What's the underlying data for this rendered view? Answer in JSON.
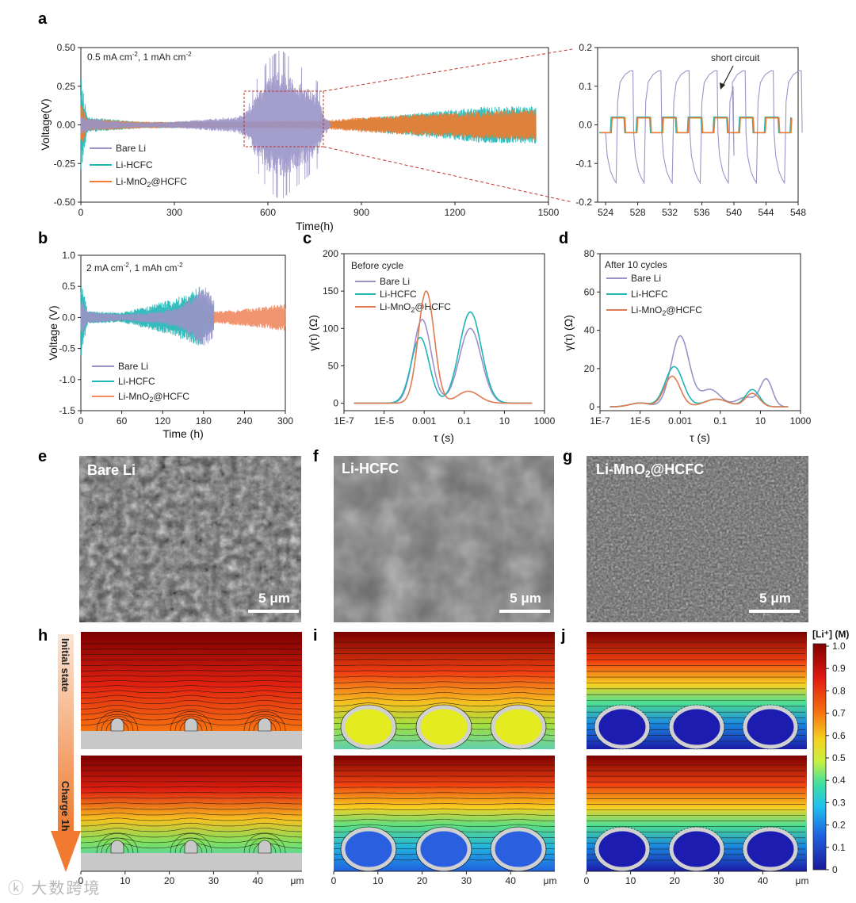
{
  "colors": {
    "bare_li": "#9a93c8",
    "li_hcfc": "#1fb5b5",
    "li_mno2": "#f07a2e",
    "frame": "#222222"
  },
  "panels": {
    "a": {
      "label": "a",
      "condition_base": "0.5 mA cm",
      "condition_sup1": "-2",
      "condition_mid": ", 1 mAh cm",
      "condition_sup2": "-2",
      "xlabel": "Time(h)",
      "ylabel": "Voltage(V)",
      "legend": {
        "bare": "Bare Li",
        "hcfc": "Li-HCFC",
        "mno2_pre": "Li-MnO",
        "mno2_sub": "2",
        "mno2_post": "@HCFC"
      },
      "zoom_note": "short circuit"
    },
    "b": {
      "label": "b",
      "condition_base": "2 mA cm",
      "condition_sup1": "-2",
      "condition_mid": ", 1 mAh cm",
      "condition_sup2": "-2",
      "xlabel": "Time (h)",
      "ylabel": "Voltage (V)",
      "legend": {
        "bare": "Bare Li",
        "hcfc": "Li-HCFC",
        "mno2_pre": "Li-MnO",
        "mno2_sub": "2",
        "mno2_post": "@HCFC"
      }
    },
    "c": {
      "label": "c",
      "note": "Before cycle",
      "xlabel": "τ (s)",
      "ylabel": "γ(τ)   (Ω)",
      "legend": {
        "bare": "Bare Li",
        "hcfc": "Li-HCFC",
        "mno2_pre": "Li-MnO",
        "mno2_sub": "2",
        "mno2_post": "@HCFC"
      }
    },
    "d": {
      "label": "d",
      "note": "After 10 cycles",
      "xlabel": "τ (s)",
      "ylabel": "γ(τ)   (Ω)",
      "legend": {
        "bare": "Bare Li",
        "hcfc": "Li-HCFC",
        "mno2_pre": "Li-MnO",
        "mno2_sub": "2",
        "mno2_post": "@HCFC"
      }
    },
    "e": {
      "label": "e",
      "title": "Bare Li",
      "scale": "5 μm"
    },
    "f": {
      "label": "f",
      "title": "Li-HCFC",
      "scale": "5 μm"
    },
    "g": {
      "label": "g",
      "title_pre": "Li-MnO",
      "title_sub": "2",
      "title_post": "@HCFC",
      "scale": "5 μm"
    },
    "h": {
      "label": "h",
      "arrow_top": "Initial state",
      "arrow_bottom": "Charge 1h"
    },
    "i": {
      "label": "i"
    },
    "j": {
      "label": "j"
    },
    "colorbar": {
      "title": "[Li⁺] (M)",
      "ticks": [
        "1.0",
        "0.9",
        "0.8",
        "0.7",
        "0.6",
        "0.5",
        "0.4",
        "0.3",
        "0.2",
        "0.1",
        "0"
      ]
    },
    "sim_axis": {
      "ticks": [
        "0",
        "10",
        "20",
        "30",
        "40"
      ],
      "unit": "μm"
    }
  },
  "chart_data": [
    {
      "id": "a",
      "type": "line",
      "title": "0.5 mA cm-2, 1 mAh cm-2",
      "xlabel": "Time(h)",
      "ylabel": "Voltage(V)",
      "xlim": [
        0,
        1500
      ],
      "ylim": [
        -0.5,
        0.5
      ],
      "xticks": [
        "0",
        "300",
        "600",
        "900",
        "1200",
        "1500"
      ],
      "yticks": [
        "0.50",
        "0.25",
        "0.00",
        "-0.25",
        "-0.50"
      ],
      "series": [
        {
          "name": "Bare Li",
          "envelope_t": [
            0,
            20,
            100,
            200,
            300,
            400,
            500,
            540,
            560,
            600,
            640,
            680,
            720,
            760,
            780,
            800
          ],
          "envelope_amp": [
            0.06,
            0.04,
            0.025,
            0.015,
            0.02,
            0.035,
            0.05,
            0.1,
            0.2,
            0.3,
            0.35,
            0.3,
            0.25,
            0.2,
            0.05,
            0.02
          ]
        },
        {
          "name": "Li-HCFC",
          "envelope_t": [
            0,
            20,
            200,
            500,
            800,
            900,
            1000,
            1200,
            1300,
            1460
          ],
          "envelope_amp": [
            0.32,
            0.05,
            0.02,
            0.02,
            0.02,
            0.04,
            0.06,
            0.1,
            0.12,
            0.12
          ]
        },
        {
          "name": "Li-MnO2@HCFC",
          "envelope_t": [
            0,
            20,
            200,
            500,
            800,
            900,
            1000,
            1200,
            1400,
            1460
          ],
          "envelope_amp": [
            0.15,
            0.04,
            0.02,
            0.02,
            0.03,
            0.05,
            0.06,
            0.08,
            0.1,
            0.1
          ]
        }
      ]
    },
    {
      "id": "a_zoom",
      "type": "line",
      "xlim": [
        523,
        548
      ],
      "ylim": [
        -0.2,
        0.2
      ],
      "xticks": [
        "524",
        "528",
        "532",
        "536",
        "540",
        "544",
        "548"
      ],
      "yticks": [
        "0.2",
        "0.1",
        "0.0",
        "-0.1",
        "-0.2"
      ],
      "series": [
        {
          "name": "Bare Li",
          "peak_high": 0.14,
          "peak_low": -0.15
        },
        {
          "name": "Li-HCFC",
          "plateau": 0.02
        },
        {
          "name": "Li-MnO2@HCFC",
          "plateau": 0.018
        }
      ]
    },
    {
      "id": "b",
      "type": "line",
      "xlim": [
        0,
        300
      ],
      "ylim": [
        -1.5,
        1.0
      ],
      "xticks": [
        "0",
        "60",
        "120",
        "180",
        "240",
        "300"
      ],
      "yticks": [
        "1.0",
        "0.5",
        "0.0",
        "-0.5",
        "-1.0",
        "-1.5"
      ],
      "series": [
        {
          "name": "Bare Li",
          "envelope_t": [
            0,
            10,
            60,
            120,
            150,
            170,
            185,
            195
          ],
          "envelope_amp": [
            0.3,
            0.1,
            0.05,
            0.1,
            0.2,
            0.4,
            0.5,
            0.3
          ]
        },
        {
          "name": "Li-HCFC",
          "envelope_t": [
            0,
            10,
            60,
            120,
            160,
            175,
            185,
            195
          ],
          "envelope_amp": [
            0.65,
            0.1,
            0.08,
            0.25,
            0.4,
            0.5,
            0.3,
            0.2
          ]
        },
        {
          "name": "Li-MnO2@HCFC",
          "envelope_t": [
            0,
            10,
            100,
            200,
            250,
            300
          ],
          "envelope_amp": [
            0.15,
            0.08,
            0.05,
            0.1,
            0.15,
            0.22
          ]
        }
      ]
    },
    {
      "id": "c",
      "type": "line",
      "title": "Before cycle",
      "xlabel": "τ (s)",
      "ylabel": "γ(τ) (Ω)",
      "xlog": true,
      "xlim_exp": [
        -7,
        3
      ],
      "ylim": [
        -10,
        200
      ],
      "xticks": [
        "1E-7",
        "1E-5",
        "0.001",
        "0.1",
        "10",
        "1000"
      ],
      "yticks": [
        "0",
        "50",
        "100",
        "150",
        "200"
      ],
      "series": [
        {
          "name": "Bare Li",
          "peaks": [
            {
              "log10tau": -3.1,
              "height": 112,
              "width": 0.45
            },
            {
              "log10tau": -0.7,
              "height": 100,
              "width": 0.55
            }
          ]
        },
        {
          "name": "Li-HCFC",
          "peaks": [
            {
              "log10tau": -3.2,
              "height": 88,
              "width": 0.45
            },
            {
              "log10tau": -0.7,
              "height": 122,
              "width": 0.55
            }
          ]
        },
        {
          "name": "Li-MnO2@HCFC",
          "peaks": [
            {
              "log10tau": -2.9,
              "height": 150,
              "width": 0.4
            },
            {
              "log10tau": -0.8,
              "height": 16,
              "width": 0.55
            }
          ]
        }
      ]
    },
    {
      "id": "d",
      "type": "line",
      "title": "After 10 cycles",
      "xlabel": "τ (s)",
      "ylabel": "γ(τ) (Ω)",
      "xlog": true,
      "xlim_exp": [
        -7,
        3
      ],
      "ylim": [
        -2,
        80
      ],
      "xticks": [
        "1E-7",
        "1E-5",
        "0.001",
        "0.1",
        "10",
        "1000"
      ],
      "yticks": [
        "0",
        "20",
        "40",
        "60",
        "80"
      ],
      "series": [
        {
          "name": "Bare Li",
          "peaks": [
            {
              "log10tau": -5.0,
              "height": 2,
              "width": 0.5
            },
            {
              "log10tau": -3.0,
              "height": 37,
              "width": 0.45
            },
            {
              "log10tau": -1.5,
              "height": 9,
              "width": 0.5
            },
            {
              "log10tau": 0.3,
              "height": 5,
              "width": 0.5
            },
            {
              "log10tau": 1.3,
              "height": 14,
              "width": 0.3
            }
          ]
        },
        {
          "name": "Li-HCFC",
          "peaks": [
            {
              "log10tau": -5.0,
              "height": 2,
              "width": 0.5
            },
            {
              "log10tau": -3.3,
              "height": 21,
              "width": 0.45
            },
            {
              "log10tau": -1.2,
              "height": 4,
              "width": 0.6
            },
            {
              "log10tau": 0.6,
              "height": 9,
              "width": 0.35
            }
          ]
        },
        {
          "name": "Li-MnO2@HCFC",
          "peaks": [
            {
              "log10tau": -5.0,
              "height": 2,
              "width": 0.5
            },
            {
              "log10tau": -3.4,
              "height": 16,
              "width": 0.4
            },
            {
              "log10tau": -1.2,
              "height": 4,
              "width": 0.6
            },
            {
              "log10tau": 0.6,
              "height": 7,
              "width": 0.35
            }
          ]
        }
      ]
    }
  ]
}
